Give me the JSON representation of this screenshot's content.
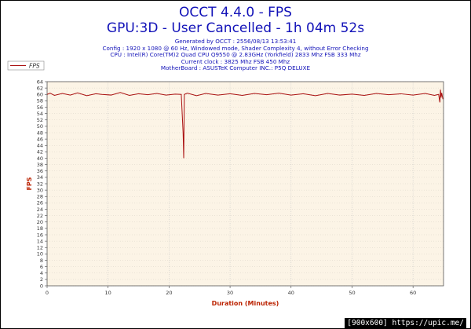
{
  "header": {
    "title": "OCCT 4.4.0 - FPS",
    "subtitle": "GPU:3D - User Cancelled - 1h 04m 52s",
    "info_lines": [
      "Generated by OCCT : 2556/08/13 13:53:41",
      "Config : 1920 x 1080 @ 60 Hz, Windowed mode, Shader Complexity 4, without Error Checking",
      "CPU : Intel(R) Core(TM)2 Quad CPU Q9550 @ 2.83GHz (Yorkfield) 2833 Mhz FSB 333 Mhz",
      "Current clock : 3825 Mhz FSB 450 Mhz",
      "MotherBoard : ASUSTeK Computer INC.: P5Q DELUXE"
    ]
  },
  "legend": {
    "label": "FPS",
    "placement": "top-left"
  },
  "watermark": {
    "text": "[900x600] https://upic.me/"
  },
  "colors": {
    "title": "#1212b8",
    "axis_label": "#bb2200",
    "series": "#aa1111",
    "plot_bg": "#fcf4e6",
    "grid": "#c8c8c8"
  },
  "chart_data": {
    "type": "line",
    "title": "OCCT 4.4.0 - FPS",
    "xlabel": "Duration (Minutes)",
    "ylabel": "FPS",
    "xlim": [
      0,
      65
    ],
    "ylim": [
      0,
      64
    ],
    "x_ticks": [
      0,
      10,
      20,
      30,
      40,
      50,
      60
    ],
    "y_ticks": [
      0,
      2,
      4,
      6,
      8,
      10,
      12,
      14,
      16,
      18,
      20,
      22,
      24,
      26,
      28,
      30,
      32,
      34,
      36,
      38,
      40,
      42,
      44,
      46,
      48,
      50,
      52,
      54,
      56,
      58,
      60,
      62,
      64
    ],
    "grid": true,
    "series": [
      {
        "name": "FPS",
        "points": [
          [
            0,
            60
          ],
          [
            0.5,
            60.4
          ],
          [
            1.2,
            59.7
          ],
          [
            2.5,
            60.3
          ],
          [
            3.8,
            59.8
          ],
          [
            5.0,
            60.5
          ],
          [
            6.5,
            59.6
          ],
          [
            8.0,
            60.2
          ],
          [
            9.0,
            60.0
          ],
          [
            10.5,
            59.8
          ],
          [
            12.0,
            60.6
          ],
          [
            13.5,
            59.7
          ],
          [
            15.0,
            60.2
          ],
          [
            16.5,
            59.9
          ],
          [
            18.0,
            60.3
          ],
          [
            19.5,
            59.8
          ],
          [
            21.0,
            60.1
          ],
          [
            22.0,
            60.0
          ],
          [
            22.3,
            48
          ],
          [
            22.4,
            40
          ],
          [
            22.5,
            60.0
          ],
          [
            23.0,
            60.4
          ],
          [
            24.5,
            59.6
          ],
          [
            26.0,
            60.3
          ],
          [
            28.0,
            59.8
          ],
          [
            30.0,
            60.2
          ],
          [
            32.0,
            59.7
          ],
          [
            34.0,
            60.3
          ],
          [
            36.0,
            59.9
          ],
          [
            38.0,
            60.4
          ],
          [
            40.0,
            59.8
          ],
          [
            42.0,
            60.2
          ],
          [
            44.0,
            59.6
          ],
          [
            46.0,
            60.3
          ],
          [
            48.0,
            59.8
          ],
          [
            50.0,
            60.1
          ],
          [
            52.0,
            59.7
          ],
          [
            54.0,
            60.3
          ],
          [
            56.0,
            59.9
          ],
          [
            58.0,
            60.2
          ],
          [
            60.0,
            59.8
          ],
          [
            62.0,
            60.3
          ],
          [
            63.5,
            59.7
          ],
          [
            64.2,
            60.0
          ],
          [
            64.4,
            57.5
          ],
          [
            64.5,
            61.5
          ],
          [
            64.6,
            59.0
          ],
          [
            64.7,
            60.5
          ],
          [
            64.9,
            58.5
          ]
        ]
      }
    ]
  }
}
